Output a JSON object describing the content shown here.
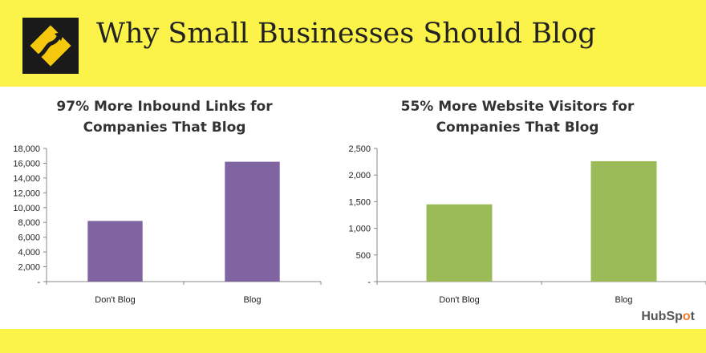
{
  "banner": {
    "title": "Why Small Businesses Should Blog"
  },
  "icons": {
    "sign": "curvy-road-sign-icon"
  },
  "colors": {
    "background": "#fbf24a",
    "purple": "#8064a2",
    "green": "#9bbb59"
  },
  "brand": {
    "name_a": "HubSp",
    "name_b": "o",
    "name_c": "t"
  },
  "chart_data": [
    {
      "type": "bar",
      "title_line1": "97% More Inbound Links for",
      "title_line2": "Companies That Blog",
      "categories": [
        "Don't Blog",
        "Blog"
      ],
      "values": [
        8200,
        16200
      ],
      "ylim": [
        0,
        18000
      ],
      "yticks": [
        "-",
        "2,000",
        "4,000",
        "6,000",
        "8,000",
        "10,000",
        "12,000",
        "14,000",
        "16,000",
        "18,000"
      ],
      "color": "#8064a2",
      "xlabel": "",
      "ylabel": ""
    },
    {
      "type": "bar",
      "title_line1": "55% More Website Visitors for",
      "title_line2": "Companies That Blog",
      "categories": [
        "Don't Blog",
        "Blog"
      ],
      "values": [
        1450,
        2260
      ],
      "ylim": [
        0,
        2500
      ],
      "yticks": [
        "-",
        "500",
        "1,000",
        "1,500",
        "2,000",
        "2,500"
      ],
      "color": "#9bbb59",
      "xlabel": "",
      "ylabel": ""
    }
  ]
}
